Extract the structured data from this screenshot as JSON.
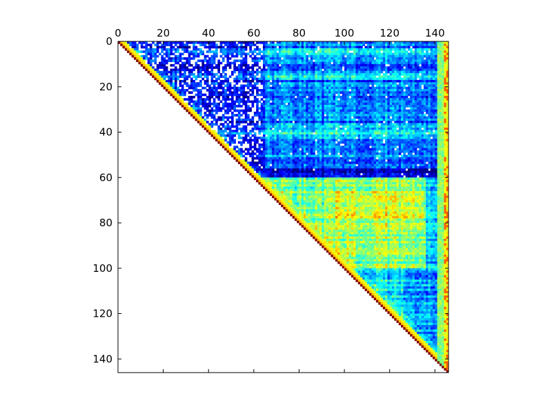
{
  "chart_data": {
    "type": "heatmap",
    "title": "",
    "xlabel": "",
    "ylabel": "",
    "n": 146,
    "xlim": [
      0,
      146
    ],
    "ylim": [
      146,
      0
    ],
    "x_axis_position": "top",
    "y_axis_position": "left",
    "x_ticks": [
      0,
      20,
      40,
      60,
      80,
      100,
      120,
      140
    ],
    "y_ticks": [
      0,
      20,
      40,
      60,
      80,
      100,
      120,
      140
    ],
    "x_tick_labels": [
      "0",
      "20",
      "40",
      "60",
      "80",
      "100",
      "120",
      "140"
    ],
    "y_tick_labels": [
      "0",
      "20",
      "40",
      "60",
      "80",
      "100",
      "120",
      "140"
    ],
    "grid": false,
    "legend": "none",
    "colormap": "jet",
    "value_range": [
      0,
      1
    ],
    "masked_region": "lower triangle (row > column) blank",
    "diagonal_value": 1.0,
    "approx_row_block_values": [
      {
        "rows": [
          0,
          59
        ],
        "cols": [
          0,
          64
        ],
        "level": 0.12,
        "note": "dark blue with many white (missing) cells"
      },
      {
        "rows": [
          0,
          59
        ],
        "cols": [
          65,
          140
        ],
        "level": 0.25,
        "note": "blue with lighter cyan bands"
      },
      {
        "rows": [
          60,
          100
        ],
        "cols": [
          60,
          140
        ],
        "level": 0.5,
        "note": "cyan / yellow-green"
      },
      {
        "rows": [
          100,
          145
        ],
        "cols": [
          100,
          140
        ],
        "level": 0.35,
        "note": "cyan-blue"
      },
      {
        "rows": [
          0,
          145
        ],
        "cols": [
          140,
          145
        ],
        "level": 0.55,
        "note": "green/yellow edge strip with orange cells"
      }
    ]
  }
}
